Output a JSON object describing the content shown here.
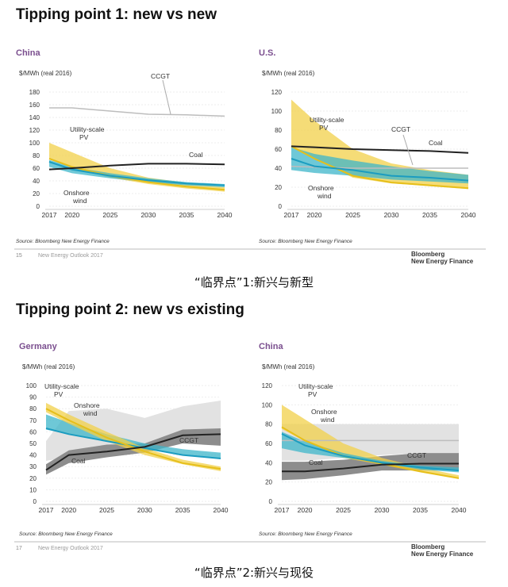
{
  "sections": [
    {
      "title": "Tipping point 1: new vs new",
      "caption": "“临界点”1:新兴与新型",
      "page_number": "15",
      "footer": "New Energy Outlook 2017",
      "brand": [
        "Bloomberg",
        "New Energy Finance"
      ]
    },
    {
      "title": "Tipping point 2: new vs existing",
      "caption": "“临界点”2:新兴与现役",
      "page_number": "17",
      "footer": "New Energy Outlook 2017",
      "brand": [
        "Bloomberg",
        "New Energy Finance"
      ]
    }
  ],
  "colors": {
    "pv": "#f2d04a",
    "pv_line": "#e6bf1a",
    "wind": "#3db5c9",
    "wind_line": "#1b9cc0",
    "coal": "#222222",
    "ccgt": "#bdbdbd",
    "range_light": "#e2e2e2",
    "range_dark": "#8d8d8d",
    "country": "#7b4f8f"
  },
  "chart_data": [
    {
      "type": "area",
      "country": "China",
      "ylabel": "$/MWh (real 2016)",
      "source": "Source: Bloomberg New Energy Finance",
      "x": [
        2017,
        2020,
        2025,
        2030,
        2035,
        2040
      ],
      "xticks": [
        "2017",
        "2020",
        "2025",
        "2030",
        "2035",
        "2040"
      ],
      "ylim": [
        0,
        180
      ],
      "yticks": [
        0,
        20,
        40,
        60,
        80,
        100,
        120,
        140,
        160,
        180
      ],
      "bands": [
        {
          "series": "pv",
          "lo": [
            75,
            60,
            45,
            35,
            28,
            23
          ],
          "hi": [
            100,
            85,
            60,
            45,
            37,
            30
          ]
        },
        {
          "series": "wind",
          "lo": [
            62,
            52,
            44,
            38,
            33,
            30
          ],
          "hi": [
            73,
            62,
            52,
            44,
            38,
            35
          ]
        }
      ],
      "lines": [
        {
          "series": "ccgt",
          "values": [
            155,
            155,
            150,
            145,
            144,
            142
          ]
        },
        {
          "series": "pv",
          "values": [
            75,
            62,
            48,
            38,
            31,
            26
          ]
        },
        {
          "series": "wind",
          "values": [
            70,
            58,
            48,
            41,
            36,
            33
          ]
        },
        {
          "series": "coal",
          "values": [
            58,
            60,
            64,
            67,
            67,
            66
          ]
        }
      ],
      "labels": [
        [
          "CCGT"
        ],
        [
          "Utility-scale",
          "PV"
        ],
        [
          "Coal"
        ],
        [
          "Onshore",
          "wind"
        ]
      ]
    },
    {
      "type": "area",
      "country": "U.S.",
      "ylabel": "$/MWh (real 2016)",
      "source": "Source: Bloomberg New Energy Finance",
      "x": [
        2017,
        2020,
        2025,
        2030,
        2035,
        2040
      ],
      "xticks": [
        "2017",
        "2020",
        "2025",
        "2030",
        "2035",
        "2040"
      ],
      "ylim": [
        0,
        120
      ],
      "yticks": [
        0,
        20,
        40,
        60,
        80,
        100,
        120
      ],
      "bands": [
        {
          "series": "pv",
          "lo": [
            62,
            50,
            30,
            24,
            21,
            18
          ],
          "hi": [
            112,
            90,
            60,
            45,
            38,
            33
          ]
        },
        {
          "series": "wind",
          "lo": [
            38,
            35,
            32,
            28,
            26,
            24
          ],
          "hi": [
            62,
            55,
            48,
            42,
            37,
            33
          ]
        }
      ],
      "lines": [
        {
          "series": "ccgt",
          "values": [
            42,
            41,
            40,
            40,
            40,
            40
          ]
        },
        {
          "series": "pv",
          "values": [
            63,
            50,
            32,
            25,
            22,
            19
          ]
        },
        {
          "series": "wind",
          "values": [
            50,
            42,
            38,
            32,
            30,
            27
          ]
        },
        {
          "series": "coal",
          "values": [
            63,
            62,
            60,
            59,
            58,
            56
          ]
        }
      ],
      "labels": [
        [
          "Utility-scale",
          "PV"
        ],
        [
          "CCGT"
        ],
        [
          "Coal"
        ],
        [
          "Onshore",
          "wind"
        ]
      ]
    },
    {
      "type": "area",
      "country": "Germany",
      "ylabel": "$/MWh (real 2016)",
      "source": "Source: Bloomberg New Energy Finance",
      "x": [
        2017,
        2020,
        2025,
        2030,
        2035,
        2040
      ],
      "xticks": [
        "2017",
        "2020",
        "2025",
        "2030",
        "2035",
        "2040"
      ],
      "ylim": [
        0,
        100
      ],
      "yticks": [
        0,
        10,
        20,
        30,
        40,
        50,
        60,
        70,
        80,
        90,
        100
      ],
      "bands": [
        {
          "series": "range_light",
          "lo": [
            35,
            38,
            44,
            45,
            50,
            50
          ],
          "hi": [
            52,
            78,
            80,
            72,
            82,
            87
          ]
        },
        {
          "series": "range_dark",
          "lo": [
            23,
            33,
            38,
            42,
            50,
            48
          ],
          "hi": [
            32,
            44,
            49,
            50,
            62,
            63
          ]
        },
        {
          "series": "wind",
          "lo": [
            62,
            58,
            52,
            45,
            40,
            37
          ],
          "hi": [
            75,
            68,
            58,
            50,
            45,
            42
          ]
        },
        {
          "series": "pv",
          "lo": [
            77,
            67,
            52,
            40,
            32,
            26
          ],
          "hi": [
            85,
            75,
            60,
            46,
            36,
            30
          ]
        }
      ],
      "lines": [
        {
          "series": "wind",
          "values": [
            63,
            58,
            52,
            46,
            40,
            37
          ]
        },
        {
          "series": "pv",
          "values": [
            80,
            70,
            55,
            43,
            33,
            28
          ]
        },
        {
          "series": "coal",
          "values": [
            27,
            40,
            43,
            47,
            57,
            58
          ]
        }
      ],
      "labels": [
        [
          "Utility-scale",
          "PV"
        ],
        [
          "Onshore",
          "wind"
        ],
        [
          "CCGT"
        ],
        [
          "Coal"
        ]
      ]
    },
    {
      "type": "area",
      "country": "China",
      "ylabel": "$/MWh (real 2016)",
      "source": "Source: Bloomberg New Energy Finance",
      "x": [
        2017,
        2020,
        2025,
        2030,
        2035,
        2040
      ],
      "xticks": [
        "2017",
        "2020",
        "2025",
        "2030",
        "2035",
        "2040"
      ],
      "ylim": [
        0,
        120
      ],
      "yticks": [
        0,
        20,
        40,
        60,
        80,
        100,
        120
      ],
      "bands": [
        {
          "series": "range_light",
          "lo": [
            42,
            42,
            45,
            48,
            50,
            50
          ],
          "hi": [
            80,
            80,
            80,
            80,
            80,
            80
          ]
        },
        {
          "series": "range_dark",
          "lo": [
            22,
            23,
            27,
            32,
            32,
            33
          ],
          "hi": [
            41,
            41,
            43,
            47,
            50,
            50
          ]
        },
        {
          "series": "pv",
          "lo": [
            75,
            62,
            45,
            38,
            30,
            23
          ],
          "hi": [
            100,
            85,
            60,
            45,
            35,
            27
          ]
        },
        {
          "series": "wind",
          "lo": [
            55,
            50,
            45,
            40,
            33,
            30
          ],
          "hi": [
            72,
            62,
            50,
            42,
            37,
            35
          ]
        }
      ],
      "lines": [
        {
          "series": "ccgt",
          "values": [
            63,
            63,
            63,
            63,
            63,
            63
          ]
        },
        {
          "series": "pv",
          "values": [
            77,
            63,
            47,
            39,
            31,
            24
          ]
        },
        {
          "series": "wind",
          "values": [
            70,
            58,
            47,
            40,
            35,
            32
          ]
        },
        {
          "series": "coal",
          "values": [
            31,
            31,
            34,
            38,
            39,
            39
          ]
        }
      ],
      "labels": [
        [
          "Utility-scale",
          "PV"
        ],
        [
          "Onshore",
          "wind"
        ],
        [
          "CCGT"
        ],
        [
          "Coal"
        ]
      ]
    }
  ]
}
